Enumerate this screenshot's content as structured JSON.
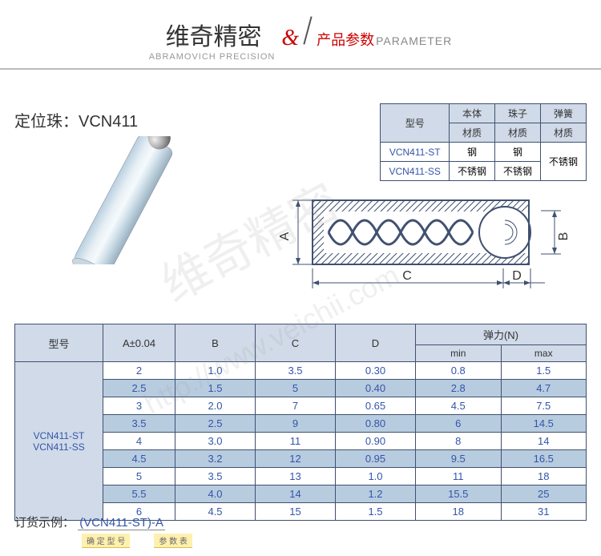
{
  "header": {
    "title_cn": "维奇精密",
    "title_en": "ABRAMOVICH PRECISION",
    "amp": "&",
    "subtitle_cn": "产品参数",
    "subtitle_en": "PARAMETER"
  },
  "product_title": "定位珠：VCN411",
  "material_table": {
    "headers": {
      "model": "型号",
      "body": "本体",
      "ball": "珠子",
      "spring": "弹簧",
      "material": "材质"
    },
    "rows": [
      {
        "model": "VCN411-ST",
        "body": "钢",
        "ball": "钢",
        "spring_span": false
      },
      {
        "model": "VCN411-SS",
        "body": "不锈钢",
        "ball": "不锈钢",
        "spring": "不锈钢"
      }
    ]
  },
  "diagram_labels": {
    "A": "A",
    "B": "B",
    "C": "C",
    "D": "D"
  },
  "spec_table": {
    "headers": {
      "model": "型号",
      "A": "A±0.04",
      "B": "B",
      "C": "C",
      "D": "D",
      "force": "弹力(N)",
      "min": "min",
      "max": "max"
    },
    "model_labels": [
      "VCN411-ST",
      "VCN411-SS"
    ],
    "rows": [
      {
        "A": "2",
        "B": "1.0",
        "C": "3.5",
        "D": "0.30",
        "min": "0.8",
        "max": "1.5"
      },
      {
        "A": "2.5",
        "B": "1.5",
        "C": "5",
        "D": "0.40",
        "min": "2.8",
        "max": "4.7"
      },
      {
        "A": "3",
        "B": "2.0",
        "C": "7",
        "D": "0.65",
        "min": "4.5",
        "max": "7.5"
      },
      {
        "A": "3.5",
        "B": "2.5",
        "C": "9",
        "D": "0.80",
        "min": "6",
        "max": "14.5"
      },
      {
        "A": "4",
        "B": "3.0",
        "C": "11",
        "D": "0.90",
        "min": "8",
        "max": "14"
      },
      {
        "A": "4.5",
        "B": "3.2",
        "C": "12",
        "D": "0.95",
        "min": "9.5",
        "max": "16.5"
      },
      {
        "A": "5",
        "B": "3.5",
        "C": "13",
        "D": "1.0",
        "min": "11",
        "max": "18"
      },
      {
        "A": "5.5",
        "B": "4.0",
        "C": "14",
        "D": "1.2",
        "min": "15.5",
        "max": "25"
      },
      {
        "A": "6",
        "B": "4.5",
        "C": "15",
        "D": "1.5",
        "min": "18",
        "max": "31"
      }
    ]
  },
  "order_example": {
    "label": "订货示例：",
    "text_open": "(",
    "text_model": "VCN411-ST",
    "text_mid": ")-",
    "text_A": "A",
    "sub1": "确 定 型 号",
    "sub2": "参 数 表"
  },
  "watermark": {
    "text1": "维奇精密",
    "text2": "http://www.veichii.com"
  },
  "colors": {
    "accent_red": "#cc0000",
    "table_header_bg": "#d0dae8",
    "table_alt_bg": "#b8ccdf",
    "border": "#405070",
    "link_blue": "#3355aa"
  }
}
